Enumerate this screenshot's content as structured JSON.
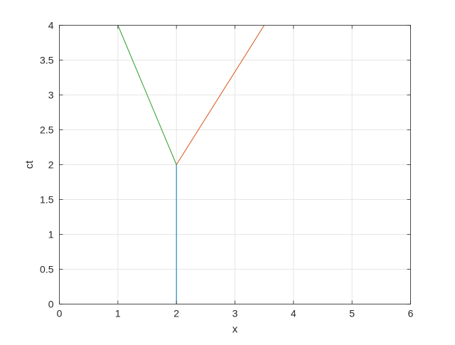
{
  "chart_data": {
    "type": "line",
    "title": "",
    "xlabel": "x",
    "ylabel": "ct",
    "xlim": [
      0,
      6
    ],
    "ylim": [
      0,
      4
    ],
    "xticks": [
      "0",
      "1",
      "2",
      "3",
      "4",
      "5",
      "6"
    ],
    "yticks": [
      "0",
      "0.5",
      "1",
      "1.5",
      "2",
      "2.5",
      "3",
      "3.5",
      "4"
    ],
    "grid": true,
    "series": [
      {
        "color": "#0072BD",
        "x": [
          2,
          2
        ],
        "y": [
          0,
          2
        ]
      },
      {
        "color": "#D95319",
        "x": [
          2,
          3.5
        ],
        "y": [
          2,
          4
        ]
      },
      {
        "color": "#2CA02C",
        "x": [
          2,
          1
        ],
        "y": [
          2,
          4
        ]
      }
    ]
  }
}
